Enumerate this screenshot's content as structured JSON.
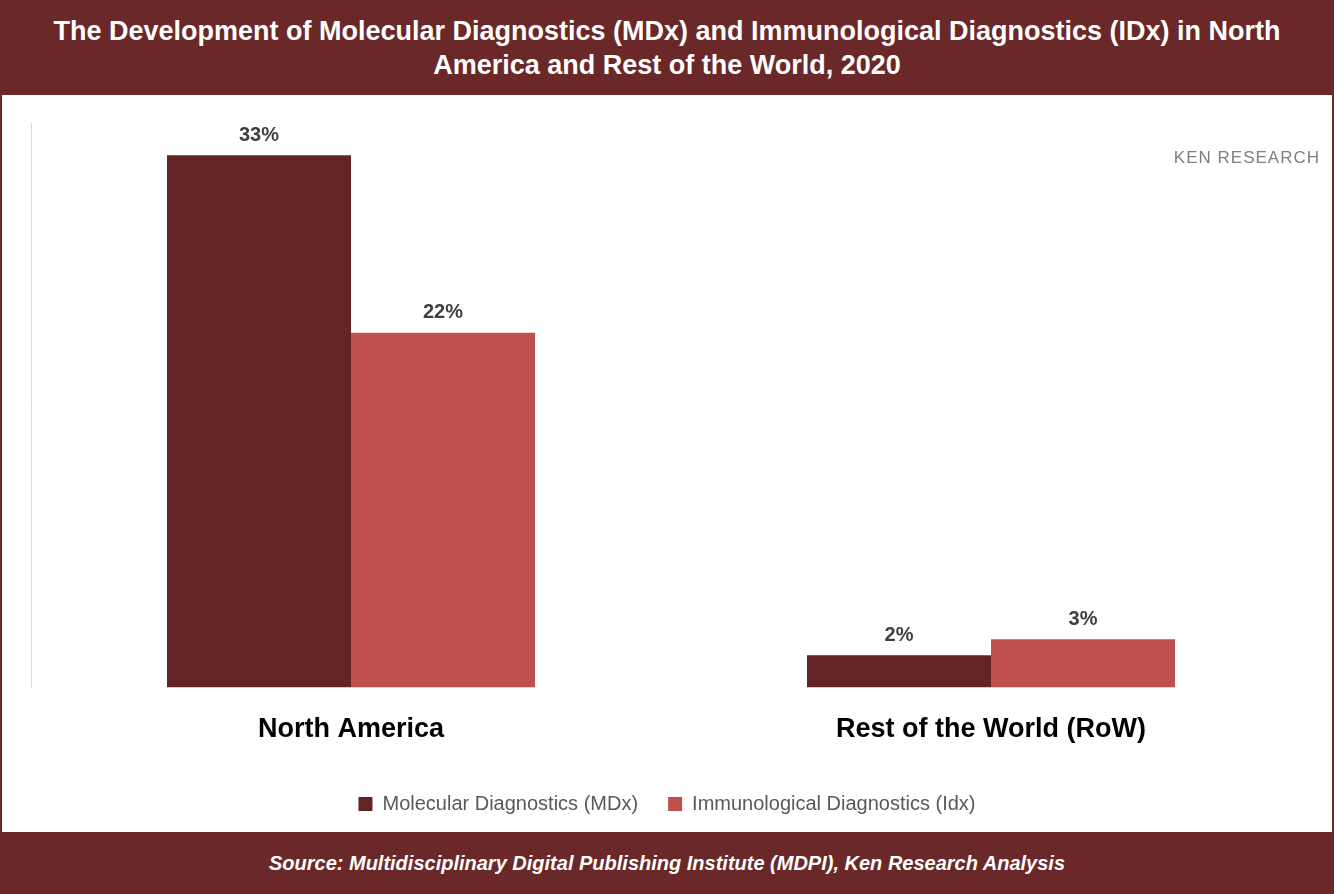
{
  "chart_data": {
    "type": "bar",
    "title": "The Development of Molecular Diagnostics (MDx) and Immunological Diagnostics (IDx) in North America and Rest of the World, 2020",
    "source": "Source: Multidisciplinary Digital Publishing Institute (MDPI), Ken Research Analysis",
    "annotations": [
      "KEN RESEARCH"
    ],
    "categories": [
      "North America",
      "Rest of the World (RoW)"
    ],
    "series": [
      {
        "name": "Molecular Diagnostics (MDx)",
        "color": "#632523",
        "values": [
          33,
          2
        ],
        "value_labels": [
          "33%",
          "2%"
        ]
      },
      {
        "name": "Immunological Diagnostics (Idx)",
        "color": "#c0504d",
        "values": [
          22,
          3
        ],
        "value_labels": [
          "22%",
          "3%"
        ]
      }
    ],
    "ylim": [
      0,
      35
    ],
    "grid": false,
    "legend": "bottom",
    "data_labels": true,
    "tick_labels": "x"
  }
}
